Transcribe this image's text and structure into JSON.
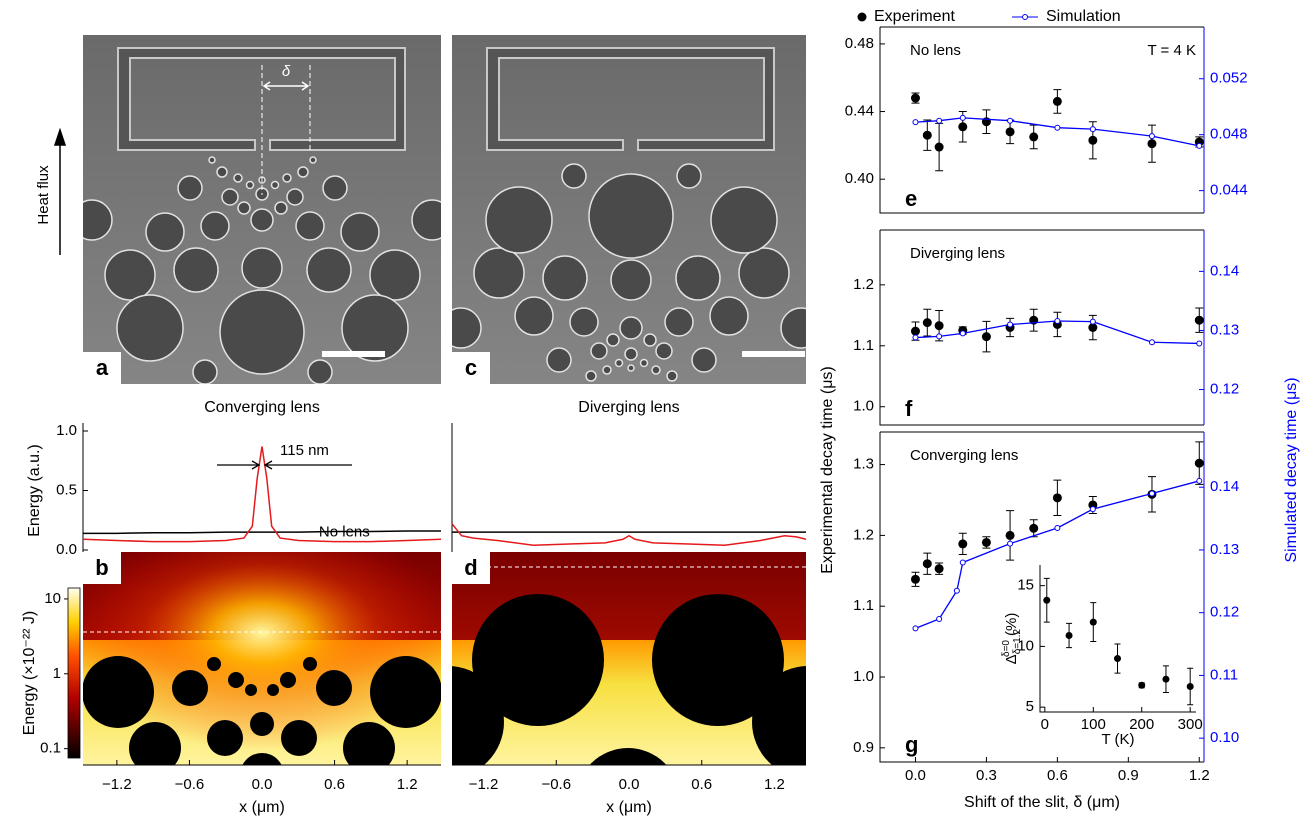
{
  "figure": {
    "heat_flux": "Heat flux",
    "delta": "δ",
    "panels": [
      "a",
      "c"
    ]
  },
  "chart_data": [
    {
      "type": "line",
      "title": "Converging lens",
      "ylabel": "Energy (a.u.)",
      "xlim": [
        -1.48,
        1.48
      ],
      "ylim": [
        0,
        1
      ],
      "yticks": [
        {
          "value": 0,
          "label": "0.0"
        },
        0.5,
        {
          "value": 1,
          "label": "1.0"
        }
      ],
      "x": [
        -1.48,
        -1.2,
        -0.9,
        -0.6,
        -0.3,
        -0.15,
        -0.08,
        -0.04,
        0,
        0.04,
        0.08,
        0.15,
        0.3,
        0.6,
        0.9,
        1.2,
        1.48
      ],
      "series": [
        {
          "name": "No lens",
          "color": "#000000",
          "values": [
            0.14,
            0.14,
            0.145,
            0.145,
            0.15,
            0.15,
            0.15,
            0.15,
            0.15,
            0.15,
            0.15,
            0.15,
            0.15,
            0.155,
            0.155,
            0.16,
            0.16
          ]
        },
        {
          "color": "#e41a1c",
          "values": [
            0.09,
            0.08,
            0.07,
            0.07,
            0.08,
            0.1,
            0.2,
            0.6,
            0.87,
            0.6,
            0.2,
            0.1,
            0.08,
            0.07,
            0.07,
            0.08,
            0.09
          ]
        }
      ],
      "annotations": [
        "115 nm"
      ]
    },
    {
      "type": "heatmap",
      "panel_label": "b",
      "xlabel": "x (μm)",
      "xlim": [
        -1.48,
        1.48
      ],
      "xticks": [
        {
          "value": -1.2,
          "label": "−1.2"
        },
        {
          "value": -0.6,
          "label": "−0.6"
        },
        {
          "value": 0,
          "label": "0.0"
        },
        0.6,
        1.2
      ],
      "colorbar": {
        "label": "Energy (×10⁻²² J)",
        "lim": [
          0.075,
          14
        ],
        "ticks": [
          0.1,
          1,
          10
        ],
        "log": true
      }
    },
    {
      "type": "line",
      "title": "Diverging lens",
      "xlim": [
        -1.48,
        1.48
      ],
      "ylim": [
        0,
        1
      ],
      "x": [
        -1.48,
        -1.4,
        -1.3,
        -1.1,
        -0.8,
        -0.5,
        -0.2,
        -0.05,
        0,
        0.05,
        0.2,
        0.5,
        0.8,
        1.1,
        1.3,
        1.4,
        1.48
      ],
      "series": [
        {
          "color": "#000000",
          "values": [
            0.15,
            0.15,
            0.15,
            0.15,
            0.15,
            0.15,
            0.15,
            0.15,
            0.15,
            0.15,
            0.15,
            0.15,
            0.15,
            0.15,
            0.15,
            0.15,
            0.15
          ]
        },
        {
          "color": "#e41a1c",
          "values": [
            0.22,
            0.12,
            0.1,
            0.08,
            0.04,
            0.05,
            0.06,
            0.09,
            0.12,
            0.09,
            0.06,
            0.05,
            0.04,
            0.08,
            0.12,
            0.11,
            0.09
          ]
        }
      ]
    },
    {
      "type": "heatmap",
      "panel_label": "d",
      "xlabel": "x (μm)",
      "xlim": [
        -1.46,
        1.46
      ],
      "xticks": [
        {
          "value": -1.2,
          "label": "−1.2"
        },
        {
          "value": -0.6,
          "label": "−0.6"
        },
        {
          "value": 0,
          "label": "0.0"
        },
        0.6,
        1.2
      ]
    },
    {
      "type": "errorbar",
      "panel_label": "e",
      "legend": "top",
      "annotations": [
        "No lens",
        "T = 4 K"
      ],
      "xlim": [
        -0.15,
        1.22
      ],
      "ylim": [
        0.38,
        0.49
      ],
      "yticks": [
        {
          "value": 0.4,
          "label": "0.40"
        },
        0.44,
        0.48
      ],
      "y2lim": [
        0.0424,
        0.0557
      ],
      "y2ticks": [
        0.044,
        0.048,
        0.052
      ],
      "series": [
        {
          "name": "Experiment",
          "color": "#000000",
          "x": [
            0,
            0.05,
            0.1,
            0.2,
            0.3,
            0.4,
            0.5,
            0.6,
            0.75,
            1.0,
            1.2
          ],
          "values": [
            0.448,
            0.426,
            0.419,
            0.431,
            0.434,
            0.428,
            0.425,
            0.446,
            0.423,
            0.421,
            0.422
          ],
          "errors": [
            0.003,
            0.009,
            0.014,
            0.009,
            0.007,
            0.007,
            0.007,
            0.007,
            0.011,
            0.011,
            0.003
          ]
        },
        {
          "name": "Simulation",
          "color": "#0000ff",
          "axis": "y2",
          "x": [
            0,
            0.1,
            0.2,
            0.4,
            0.6,
            0.75,
            1.0,
            1.2
          ],
          "values": [
            0.0489,
            0.049,
            0.0492,
            0.049,
            0.0485,
            0.0484,
            0.0479,
            0.0472
          ]
        }
      ]
    },
    {
      "type": "errorbar",
      "panel_label": "f",
      "annotations": [
        "Diverging lens"
      ],
      "xlim": [
        -0.15,
        1.22
      ],
      "ylim": [
        0.97,
        1.29
      ],
      "yticks": [
        {
          "value": 1,
          "label": "1.0"
        },
        1.1,
        1.2
      ],
      "y2lim": [
        0.114,
        0.147
      ],
      "y2ticks": [
        0.12,
        0.13,
        0.14
      ],
      "series": [
        {
          "color": "#000000",
          "x": [
            0,
            0.05,
            0.1,
            0.2,
            0.3,
            0.4,
            0.5,
            0.6,
            0.75,
            1.2
          ],
          "values": [
            1.124,
            1.138,
            1.133,
            1.125,
            1.115,
            1.13,
            1.142,
            1.135,
            1.13,
            1.142
          ],
          "errors": [
            0.015,
            0.022,
            0.025,
            0.006,
            0.025,
            0.015,
            0.018,
            0.02,
            0.02,
            0.02
          ]
        },
        {
          "color": "#0000ff",
          "axis": "y2",
          "x": [
            0,
            0.1,
            0.2,
            0.4,
            0.6,
            0.75,
            1.0,
            1.2
          ],
          "values": [
            0.1288,
            0.129,
            0.1295,
            0.131,
            0.1316,
            0.1315,
            0.128,
            0.1278
          ]
        }
      ]
    },
    {
      "type": "errorbar",
      "panel_label": "g",
      "annotations": [
        "Converging lens"
      ],
      "xlabel": "Shift of the slit, δ (μm)",
      "ylabel": "Experimental decay time (μs)",
      "y2label": "Simulated decay time (μs)",
      "xlim": [
        -0.15,
        1.22
      ],
      "xticks": [
        {
          "value": 0,
          "label": "0.0"
        },
        0.3,
        0.6,
        0.9,
        1.2
      ],
      "ylim": [
        0.88,
        1.346
      ],
      "yticks": [
        0.9,
        {
          "value": 1,
          "label": "1.0"
        },
        1.1,
        1.2,
        1.3
      ],
      "y2lim": [
        0.0962,
        0.1488
      ],
      "y2ticks": [
        {
          "value": 0.1,
          "label": "0.10"
        },
        0.11,
        0.12,
        0.13,
        0.14
      ],
      "series": [
        {
          "color": "#000000",
          "x": [
            0,
            0.05,
            0.1,
            0.2,
            0.3,
            0.4,
            0.5,
            0.6,
            0.75,
            1.0,
            1.2
          ],
          "values": [
            1.138,
            1.16,
            1.153,
            1.188,
            1.19,
            1.2,
            1.21,
            1.253,
            1.243,
            1.258,
            1.302
          ],
          "errors": [
            0.01,
            0.015,
            0.008,
            0.015,
            0.008,
            0.035,
            0.012,
            0.025,
            0.012,
            0.025,
            0.03
          ]
        },
        {
          "color": "#0000ff",
          "axis": "y2",
          "x": [
            0,
            0.1,
            0.175,
            0.2,
            0.4,
            0.6,
            0.75,
            1.0,
            1.2
          ],
          "values": [
            0.1175,
            0.119,
            0.1235,
            0.128,
            0.131,
            0.1335,
            0.1365,
            0.139,
            0.141
          ]
        }
      ]
    },
    {
      "type": "errorbar",
      "xlabel": "T (K)",
      "ylabel": {
        "symbol": "Δ",
        "sup": "δ=0",
        "sub": "δ=1.2",
        "unit": "(%)"
      },
      "xlim": [
        -10,
        312
      ],
      "ylim": [
        4.6,
        16.7
      ],
      "xticks": [
        0,
        100,
        200,
        300
      ],
      "yticks": [
        5,
        10,
        15
      ],
      "series": [
        {
          "color": "#000000",
          "x": [
            4,
            50,
            100,
            150,
            200,
            250,
            300
          ],
          "values": [
            13.8,
            10.9,
            12,
            9,
            6.8,
            7.3,
            6.7
          ],
          "errors": [
            1.8,
            1,
            1.6,
            1.2,
            0.2,
            1.1,
            1.5
          ]
        }
      ]
    }
  ]
}
